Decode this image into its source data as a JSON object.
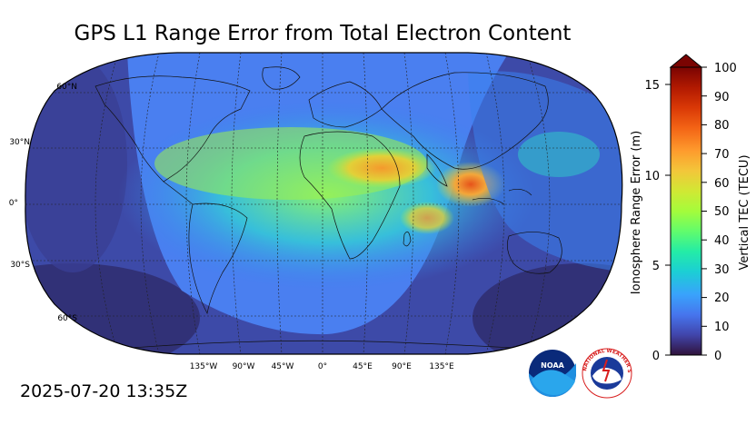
{
  "title": "GPS L1 Range Error from Total Electron Content",
  "timestamp": "2025-07-20 13:35Z",
  "map": {
    "projection": "robinson",
    "lat_labels": [
      "60°N",
      "30°N",
      "0°",
      "30°S",
      "60°S"
    ],
    "lon_labels": [
      "135°W",
      "90°W",
      "45°W",
      "0°",
      "45°E",
      "90°E",
      "135°E"
    ],
    "feature": "daytime ionosphere bulge centered over Africa/Middle East; highest TEC over Southeast Asia and northeast Africa"
  },
  "colorbar": {
    "left_axis_label": "Ionosphere Range Error (m)",
    "left_ticks": [
      "0",
      "5",
      "10",
      "15"
    ],
    "right_axis_label": "Vertical TEC (TECU)",
    "right_ticks": [
      "0",
      "10",
      "20",
      "30",
      "40",
      "50",
      "60",
      "70",
      "80",
      "90",
      "100"
    ],
    "colormap": [
      "#30123b",
      "#4145ab",
      "#4675ed",
      "#39a2fc",
      "#1bcfd4",
      "#24eca6",
      "#61fc6c",
      "#a4fc3b",
      "#d1e834",
      "#f3c63a",
      "#fe9b2d",
      "#f36315",
      "#d93806",
      "#b11901",
      "#7a0402"
    ]
  },
  "logos": {
    "noaa": "NOAA",
    "nws_ring": "NATIONAL WEATHER SERVICE"
  }
}
